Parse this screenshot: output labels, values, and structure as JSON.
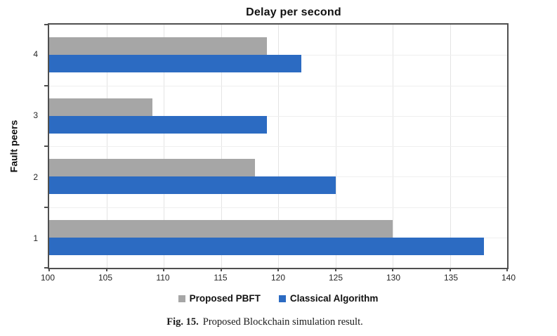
{
  "chart_data": {
    "type": "bar",
    "orientation": "horizontal",
    "title": "Delay per second",
    "xlabel": "",
    "ylabel": "Fault peers",
    "categories": [
      "4",
      "3",
      "2",
      "1"
    ],
    "series": [
      {
        "name": "Proposed PBFT",
        "color": "#a6a6a6",
        "values": [
          119,
          109,
          118,
          130
        ]
      },
      {
        "name": "Classical Algorithm",
        "color": "#2c6bc2",
        "values": [
          122,
          119,
          125,
          138
        ]
      }
    ],
    "xlim": [
      100,
      140
    ],
    "xticks": [
      100,
      105,
      110,
      115,
      120,
      125,
      130,
      135,
      140
    ],
    "grid": true,
    "legend_position": "bottom",
    "plot_border_color": "#4f4f4f",
    "gridline_color": "#e4e4e4"
  },
  "caption": {
    "prefix": "Fig. 15.",
    "text": "Proposed Blockchain simulation result."
  }
}
